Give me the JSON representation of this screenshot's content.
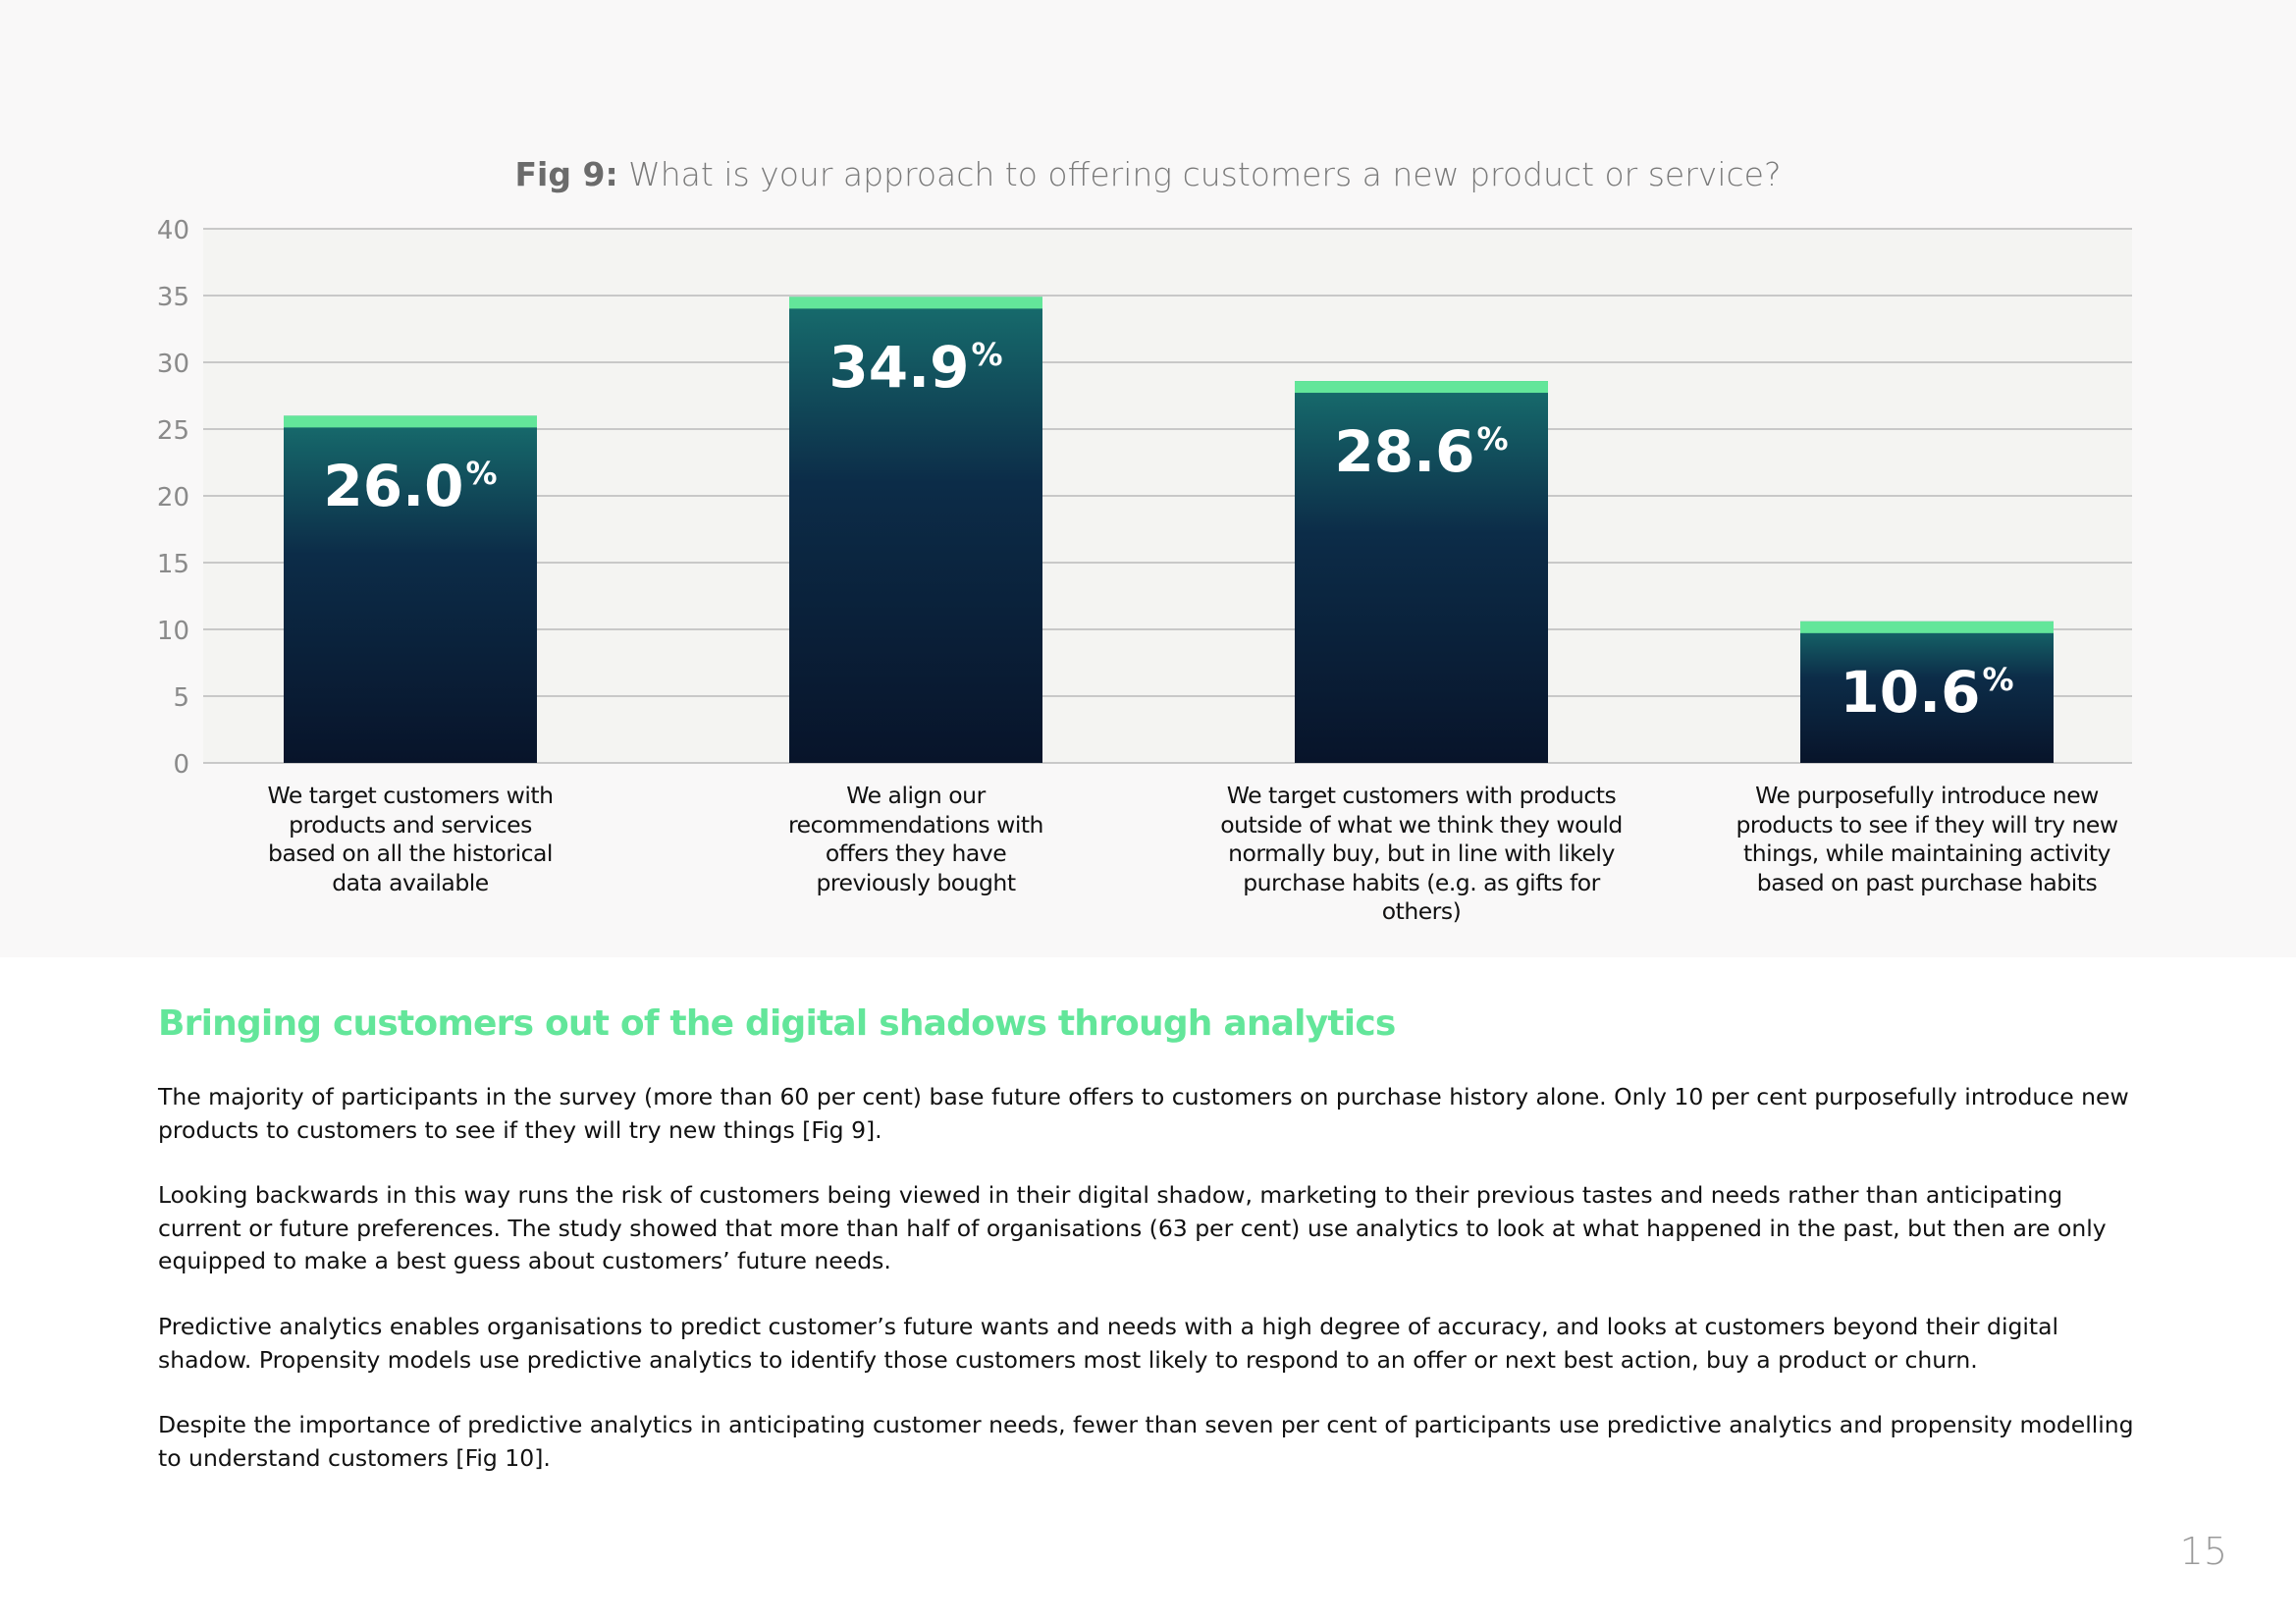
{
  "figure": {
    "label": "Fig 9:",
    "question": "What is your approach to offering customers a new product or service?"
  },
  "chart_data": {
    "type": "bar",
    "title": "Fig 9: What is your approach to offering customers a new product or service?",
    "xlabel": "",
    "ylabel": "",
    "ylim": [
      0,
      40
    ],
    "yticks": [
      0,
      5,
      10,
      15,
      20,
      25,
      30,
      35,
      40
    ],
    "grid": true,
    "categories": [
      "We target customers with products and services based on all the historical data available",
      "We align our recommendations with offers they have previously bought",
      "We target customers with products outside of what we think they would normally buy, but in line with likely purchase habits (e.g. as gifts for others)",
      "We purposefully introduce new products to see if they will try new things, while maintaining activity based on past purchase habits"
    ],
    "category_lines": [
      [
        "We target customers with",
        "products and services",
        "based on all the historical",
        "data available"
      ],
      [
        "We align our",
        "recommendations with",
        "offers they have",
        "previously bought"
      ],
      [
        "We target customers with products",
        "outside of what we think they would",
        "normally buy, but in line with likely",
        "purchase habits (e.g. as gifts for others)"
      ],
      [
        "We purposefully introduce new",
        "products to see if they will try new",
        "things, while maintaining activity",
        "based on past purchase habits"
      ]
    ],
    "values": [
      26.0,
      34.9,
      28.6,
      10.6
    ],
    "value_labels": [
      "26.0",
      "34.9",
      "28.6",
      "10.6"
    ],
    "value_suffix": "%",
    "colors": {
      "bar_top": "#176e6e",
      "bar_mid": "#0c2c48",
      "bar_bottom": "#08142a",
      "cap": "#63e69a",
      "grid": "#b9b9b9",
      "plot_bg": "#f4f4f2"
    }
  },
  "section": {
    "heading": "Bringing customers out of the digital shadows through analytics",
    "paragraphs": [
      "The majority of participants in the survey (more than 60 per cent) base future offers to customers on purchase history alone. Only 10 per cent purposefully introduce new products to customers to see if they will try new things [Fig 9].",
      "Looking backwards in this way runs the risk of customers being viewed in their digital shadow, marketing to their previous tastes and needs rather than anticipating current or future preferences. The study showed that more than half of organisations (63 per cent) use analytics to look at what happened in the past, but then are only equipped to make a best guess about customers’ future needs.",
      "Predictive analytics enables organisations to predict customer’s future wants and needs with a high degree of accuracy, and looks at customers beyond their digital shadow. Propensity models use predictive analytics to identify those customers most likely to respond to an offer or next best action, buy a product or churn.",
      "Despite the importance of predictive analytics in anticipating customer needs, fewer than seven per cent of participants use predictive analytics and propensity modelling to understand customers [Fig 10]."
    ]
  },
  "page_number": "15"
}
